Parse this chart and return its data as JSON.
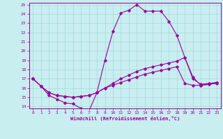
{
  "xlabel": "Windchill (Refroidissement éolien,°C)",
  "bg_color": "#c8eef0",
  "line_color": "#990099",
  "grid_color": "#aadddd",
  "xlim": [
    -0.5,
    23.5
  ],
  "ylim": [
    13.8,
    25.2
  ],
  "xticks": [
    0,
    1,
    2,
    3,
    4,
    5,
    6,
    7,
    8,
    9,
    10,
    11,
    12,
    13,
    14,
    15,
    16,
    17,
    18,
    19,
    20,
    21,
    22,
    23
  ],
  "yticks": [
    14,
    15,
    16,
    17,
    18,
    19,
    20,
    21,
    22,
    23,
    24,
    25
  ],
  "line1_x": [
    0,
    1,
    2,
    3,
    4,
    5,
    6,
    7,
    8,
    9,
    10,
    11,
    12,
    13,
    14,
    15,
    16,
    17,
    18,
    19,
    20,
    21,
    22,
    23
  ],
  "line1_y": [
    17.0,
    16.2,
    15.2,
    14.8,
    14.4,
    14.3,
    13.8,
    13.5,
    15.5,
    19.0,
    22.1,
    24.1,
    24.4,
    25.0,
    24.3,
    24.3,
    24.3,
    23.2,
    21.7,
    19.3,
    17.2,
    16.3,
    16.4,
    16.5
  ],
  "line2_x": [
    0,
    1,
    2,
    3,
    4,
    5,
    6,
    7,
    8,
    9,
    10,
    11,
    12,
    13,
    14,
    15,
    16,
    17,
    18,
    19,
    20,
    21,
    22,
    23
  ],
  "line2_y": [
    17.0,
    16.2,
    15.5,
    15.2,
    15.1,
    15.0,
    15.1,
    15.2,
    15.5,
    16.0,
    16.5,
    17.0,
    17.4,
    17.8,
    18.1,
    18.3,
    18.5,
    18.7,
    18.9,
    19.3,
    17.0,
    16.4,
    16.5,
    16.6
  ],
  "line3_x": [
    0,
    1,
    2,
    3,
    4,
    5,
    6,
    7,
    8,
    9,
    10,
    11,
    12,
    13,
    14,
    15,
    16,
    17,
    18,
    19,
    20,
    21,
    22,
    23
  ],
  "line3_y": [
    17.0,
    16.2,
    15.5,
    15.2,
    15.1,
    15.0,
    15.1,
    15.2,
    15.5,
    16.0,
    16.3,
    16.6,
    16.9,
    17.2,
    17.5,
    17.7,
    17.9,
    18.1,
    18.3,
    16.5,
    16.3,
    16.3,
    16.4,
    16.6
  ]
}
